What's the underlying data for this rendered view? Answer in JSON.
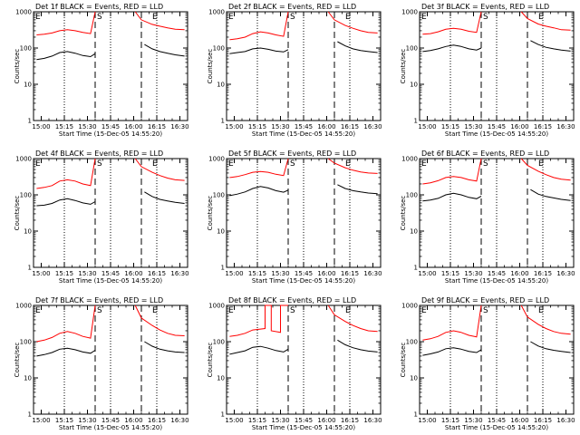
{
  "figure": {
    "y_axis_label": "Counts/sec",
    "x_axis_label": "Start Time (15-Dec-05 14:55:20)",
    "x_tick_labels": [
      "15:00",
      "15:15",
      "15:30",
      "15:45",
      "16:00",
      "16:15",
      "16:30"
    ],
    "y_tick_labels": [
      "1",
      "10",
      "100",
      "1000"
    ],
    "markers": {
      "start": "E",
      "middle": "S",
      "end": "E"
    },
    "colors": {
      "events": "#000000",
      "lld": "#ff0000",
      "axes": "#000000",
      "background": "#ffffff"
    }
  },
  "chart_data": [
    {
      "type": "line",
      "title": "Det 1f BLACK = Events, RED = LLD",
      "xlabel": "Start Time (15-Dec-05 14:55:20)",
      "ylabel": "Counts/sec",
      "x_unit": "time of day (minutes)",
      "xlim": [
        "14:55",
        "16:35"
      ],
      "ylim": [
        1,
        1000
      ],
      "y_scale": "log",
      "vertical_lines": {
        "dotted": [
          "15:15",
          "15:45",
          "16:15"
        ],
        "dashed": [
          "15:35",
          "16:05"
        ]
      },
      "series": [
        {
          "name": "BLACK = Events",
          "color": "#000000",
          "x": [
            "14:57",
            "15:02",
            "15:07",
            "15:12",
            "15:17",
            "15:22",
            "15:27",
            "15:32",
            "15:35",
            "16:05",
            "16:07",
            "16:12",
            "16:17",
            "16:22",
            "16:27",
            "16:33"
          ],
          "y": [
            48,
            52,
            60,
            75,
            80,
            72,
            62,
            58,
            70,
            null,
            125,
            95,
            80,
            72,
            65,
            60
          ]
        },
        {
          "name": "RED = LLD",
          "color": "#ff0000",
          "x": [
            "14:57",
            "15:02",
            "15:07",
            "15:12",
            "15:17",
            "15:22",
            "15:27",
            "15:32",
            "15:35",
            "15:37",
            "16:01",
            "16:05",
            "16:12",
            "16:17",
            "16:22",
            "16:27",
            "16:33"
          ],
          "y": [
            230,
            240,
            260,
            300,
            320,
            300,
            270,
            250,
            1000,
            null,
            1000,
            600,
            450,
            400,
            360,
            330,
            320
          ]
        }
      ]
    },
    {
      "type": "line",
      "title": "Det 2f BLACK = Events, RED = LLD",
      "xlabel": "Start Time (15-Dec-05 14:55:20)",
      "ylabel": "Counts/sec",
      "x_unit": "time of day (minutes)",
      "xlim": [
        "14:55",
        "16:35"
      ],
      "ylim": [
        1,
        1000
      ],
      "y_scale": "log",
      "vertical_lines": {
        "dotted": [
          "15:15",
          "15:45",
          "16:15"
        ],
        "dashed": [
          "15:35",
          "16:05"
        ]
      },
      "series": [
        {
          "name": "BLACK = Events",
          "color": "#000000",
          "x": [
            "14:57",
            "15:02",
            "15:07",
            "15:12",
            "15:17",
            "15:22",
            "15:27",
            "15:32",
            "15:35",
            "16:05",
            "16:07",
            "16:12",
            "16:17",
            "16:22",
            "16:27",
            "16:33"
          ],
          "y": [
            70,
            75,
            80,
            95,
            100,
            92,
            82,
            78,
            90,
            null,
            150,
            115,
            95,
            85,
            80,
            75
          ]
        },
        {
          "name": "RED = LLD",
          "color": "#ff0000",
          "x": [
            "14:57",
            "15:02",
            "15:07",
            "15:12",
            "15:17",
            "15:22",
            "15:27",
            "15:32",
            "15:35",
            "15:37",
            "16:01",
            "16:05",
            "16:12",
            "16:17",
            "16:22",
            "16:27",
            "16:33"
          ],
          "y": [
            170,
            180,
            200,
            250,
            280,
            260,
            230,
            210,
            1000,
            null,
            1000,
            600,
            420,
            350,
            300,
            270,
            260
          ]
        }
      ]
    },
    {
      "type": "line",
      "title": "Det 3f BLACK = Events, RED = LLD",
      "xlabel": "Start Time (15-Dec-05 14:55:20)",
      "ylabel": "Counts/sec",
      "x_unit": "time of day (minutes)",
      "xlim": [
        "14:55",
        "16:35"
      ],
      "ylim": [
        1,
        1000
      ],
      "y_scale": "log",
      "vertical_lines": {
        "dotted": [
          "15:15",
          "15:45",
          "16:15"
        ],
        "dashed": [
          "15:35",
          "16:05"
        ]
      },
      "series": [
        {
          "name": "BLACK = Events",
          "color": "#000000",
          "x": [
            "14:57",
            "15:02",
            "15:07",
            "15:12",
            "15:17",
            "15:22",
            "15:27",
            "15:32",
            "15:35",
            "16:05",
            "16:07",
            "16:12",
            "16:17",
            "16:22",
            "16:27",
            "16:33"
          ],
          "y": [
            80,
            85,
            95,
            110,
            120,
            110,
            95,
            88,
            100,
            null,
            160,
            125,
            105,
            95,
            88,
            82
          ]
        },
        {
          "name": "RED = LLD",
          "color": "#ff0000",
          "x": [
            "14:57",
            "15:02",
            "15:07",
            "15:12",
            "15:17",
            "15:22",
            "15:27",
            "15:32",
            "15:35",
            "15:37",
            "16:01",
            "16:05",
            "16:12",
            "16:17",
            "16:22",
            "16:27",
            "16:33"
          ],
          "y": [
            240,
            250,
            280,
            330,
            350,
            330,
            290,
            270,
            1000,
            null,
            1000,
            650,
            460,
            400,
            360,
            320,
            310
          ]
        }
      ]
    },
    {
      "type": "line",
      "title": "Det 4f BLACK = Events, RED = LLD",
      "xlabel": "Start Time (15-Dec-05 14:55:20)",
      "ylabel": "Counts/sec",
      "x_unit": "time of day (minutes)",
      "xlim": [
        "14:55",
        "16:35"
      ],
      "ylim": [
        1,
        1000
      ],
      "y_scale": "log",
      "vertical_lines": {
        "dotted": [
          "15:15",
          "15:45",
          "16:15"
        ],
        "dashed": [
          "15:35",
          "16:05"
        ]
      },
      "series": [
        {
          "name": "BLACK = Events",
          "color": "#000000",
          "x": [
            "14:57",
            "15:02",
            "15:07",
            "15:12",
            "15:17",
            "15:22",
            "15:27",
            "15:32",
            "15:35",
            "16:05",
            "16:07",
            "16:12",
            "16:17",
            "16:22",
            "16:27",
            "16:33"
          ],
          "y": [
            50,
            52,
            58,
            72,
            78,
            70,
            60,
            55,
            65,
            null,
            120,
            90,
            75,
            68,
            62,
            58
          ]
        },
        {
          "name": "RED = LLD",
          "color": "#ff0000",
          "x": [
            "14:57",
            "15:02",
            "15:07",
            "15:12",
            "15:17",
            "15:22",
            "15:27",
            "15:32",
            "15:35",
            "15:37",
            "16:01",
            "16:05",
            "16:12",
            "16:17",
            "16:22",
            "16:27",
            "16:33"
          ],
          "y": [
            150,
            160,
            180,
            240,
            260,
            240,
            200,
            180,
            1000,
            null,
            1000,
            600,
            420,
            340,
            290,
            260,
            250
          ]
        }
      ]
    },
    {
      "type": "line",
      "title": "Det 5f BLACK = Events, RED = LLD",
      "xlabel": "Start Time (15-Dec-05 14:55:20)",
      "ylabel": "Counts/sec",
      "x_unit": "time of day (minutes)",
      "xlim": [
        "14:55",
        "16:35"
      ],
      "ylim": [
        1,
        1000
      ],
      "y_scale": "log",
      "vertical_lines": {
        "dotted": [
          "15:15",
          "15:45",
          "16:15"
        ],
        "dashed": [
          "15:35",
          "16:05"
        ]
      },
      "series": [
        {
          "name": "BLACK = Events",
          "color": "#000000",
          "x": [
            "14:57",
            "15:02",
            "15:07",
            "15:12",
            "15:17",
            "15:22",
            "15:27",
            "15:32",
            "15:35",
            "16:05",
            "16:07",
            "16:12",
            "16:17",
            "16:22",
            "16:27",
            "16:33"
          ],
          "y": [
            95,
            105,
            120,
            150,
            170,
            155,
            130,
            118,
            135,
            null,
            190,
            150,
            130,
            120,
            112,
            108
          ]
        },
        {
          "name": "RED = LLD",
          "color": "#ff0000",
          "x": [
            "14:57",
            "15:02",
            "15:07",
            "15:12",
            "15:17",
            "15:22",
            "15:27",
            "15:32",
            "15:35",
            "15:37",
            "16:01",
            "16:05",
            "16:12",
            "16:17",
            "16:22",
            "16:27",
            "16:33"
          ],
          "y": [
            300,
            320,
            360,
            420,
            440,
            420,
            370,
            340,
            1000,
            null,
            1000,
            750,
            560,
            480,
            430,
            400,
            390
          ]
        }
      ]
    },
    {
      "type": "line",
      "title": "Det 6f BLACK = Events, RED = LLD",
      "xlabel": "Start Time (15-Dec-05 14:55:20)",
      "ylabel": "Counts/sec",
      "x_unit": "time of day (minutes)",
      "xlim": [
        "14:55",
        "16:35"
      ],
      "ylim": [
        1,
        1000
      ],
      "y_scale": "log",
      "vertical_lines": {
        "dotted": [
          "15:15",
          "15:45",
          "16:15"
        ],
        "dashed": [
          "15:35",
          "16:05"
        ]
      },
      "series": [
        {
          "name": "BLACK = Events",
          "color": "#000000",
          "x": [
            "14:57",
            "15:02",
            "15:07",
            "15:12",
            "15:17",
            "15:22",
            "15:27",
            "15:32",
            "15:35",
            "16:05",
            "16:07",
            "16:12",
            "16:17",
            "16:22",
            "16:27",
            "16:33"
          ],
          "y": [
            68,
            72,
            80,
            100,
            110,
            100,
            85,
            78,
            92,
            null,
            140,
            105,
            90,
            82,
            75,
            70
          ]
        },
        {
          "name": "RED = LLD",
          "color": "#ff0000",
          "x": [
            "14:57",
            "15:02",
            "15:07",
            "15:12",
            "15:17",
            "15:22",
            "15:27",
            "15:32",
            "15:35",
            "15:37",
            "16:01",
            "16:05",
            "16:12",
            "16:17",
            "16:22",
            "16:27",
            "16:33"
          ],
          "y": [
            200,
            215,
            245,
            300,
            320,
            300,
            260,
            240,
            1000,
            null,
            1000,
            650,
            450,
            360,
            300,
            270,
            255
          ]
        }
      ]
    },
    {
      "type": "line",
      "title": "Det 7f BLACK = Events, RED = LLD",
      "xlabel": "Start Time (15-Dec-05 14:55:20)",
      "ylabel": "Counts/sec",
      "x_unit": "time of day (minutes)",
      "xlim": [
        "14:55",
        "16:35"
      ],
      "ylim": [
        1,
        1000
      ],
      "y_scale": "log",
      "vertical_lines": {
        "dotted": [
          "15:15",
          "15:45",
          "16:15"
        ],
        "dashed": [
          "15:35",
          "16:05"
        ]
      },
      "series": [
        {
          "name": "BLACK = Events",
          "color": "#000000",
          "x": [
            "14:57",
            "15:02",
            "15:07",
            "15:12",
            "15:17",
            "15:22",
            "15:27",
            "15:32",
            "15:35",
            "16:05",
            "16:07",
            "16:12",
            "16:17",
            "16:22",
            "16:27",
            "16:33"
          ],
          "y": [
            40,
            44,
            50,
            62,
            66,
            60,
            52,
            48,
            58,
            null,
            100,
            75,
            62,
            56,
            52,
            50
          ]
        },
        {
          "name": "RED = LLD",
          "color": "#ff0000",
          "x": [
            "14:57",
            "15:02",
            "15:07",
            "15:12",
            "15:17",
            "15:22",
            "15:27",
            "15:32",
            "15:35",
            "15:37",
            "16:01",
            "16:05",
            "16:12",
            "16:17",
            "16:22",
            "16:27",
            "16:33"
          ],
          "y": [
            100,
            110,
            130,
            170,
            190,
            170,
            140,
            125,
            1000,
            null,
            1000,
            450,
            280,
            210,
            170,
            150,
            145
          ]
        }
      ]
    },
    {
      "type": "line",
      "title": "Det 8f BLACK = Events, RED = LLD",
      "xlabel": "Start Time (15-Dec-05 14:55:20)",
      "ylabel": "Counts/sec",
      "x_unit": "time of day (minutes)",
      "xlim": [
        "14:55",
        "16:35"
      ],
      "ylim": [
        1,
        1000
      ],
      "y_scale": "log",
      "vertical_lines": {
        "dotted": [
          "15:15",
          "15:45",
          "16:15"
        ],
        "dashed": [
          "15:35",
          "16:05"
        ]
      },
      "series": [
        {
          "name": "BLACK = Events",
          "color": "#000000",
          "x": [
            "14:57",
            "15:02",
            "15:07",
            "15:12",
            "15:17",
            "15:22",
            "15:27",
            "15:32",
            "15:35",
            "16:05",
            "16:07",
            "16:12",
            "16:17",
            "16:22",
            "16:27",
            "16:33"
          ],
          "y": [
            45,
            50,
            56,
            70,
            74,
            66,
            57,
            52,
            62,
            null,
            110,
            82,
            68,
            60,
            55,
            52
          ]
        },
        {
          "name": "RED = LLD",
          "color": "#ff0000",
          "x": [
            "14:57",
            "15:02",
            "15:07",
            "15:12",
            "15:20",
            "15:20",
            "15:24",
            "15:24",
            "15:30",
            "15:30",
            "15:35",
            "15:37",
            "16:01",
            "16:05",
            "16:12",
            "16:17",
            "16:22",
            "16:27",
            "16:33"
          ],
          "y": [
            140,
            150,
            170,
            210,
            230,
            1000,
            1000,
            200,
            180,
            1000,
            1000,
            null,
            1000,
            550,
            360,
            280,
            230,
            200,
            190
          ]
        }
      ]
    },
    {
      "type": "line",
      "title": "Det 9f BLACK = Events, RED = LLD",
      "xlabel": "Start Time (15-Dec-05 14:55:20)",
      "ylabel": "Counts/sec",
      "x_unit": "time of day (minutes)",
      "xlim": [
        "14:55",
        "16:35"
      ],
      "ylim": [
        1,
        1000
      ],
      "y_scale": "log",
      "vertical_lines": {
        "dotted": [
          "15:15",
          "15:45",
          "16:15"
        ],
        "dashed": [
          "15:35",
          "16:05"
        ]
      },
      "series": [
        {
          "name": "BLACK = Events",
          "color": "#000000",
          "x": [
            "14:57",
            "15:02",
            "15:07",
            "15:12",
            "15:17",
            "15:22",
            "15:27",
            "15:32",
            "15:35",
            "16:05",
            "16:07",
            "16:12",
            "16:17",
            "16:22",
            "16:27",
            "16:33"
          ],
          "y": [
            42,
            46,
            52,
            64,
            68,
            62,
            54,
            50,
            60,
            null,
            100,
            76,
            64,
            58,
            54,
            50
          ]
        },
        {
          "name": "RED = LLD",
          "color": "#ff0000",
          "x": [
            "14:57",
            "15:02",
            "15:07",
            "15:12",
            "15:17",
            "15:22",
            "15:27",
            "15:32",
            "15:35",
            "15:37",
            "16:01",
            "16:05",
            "16:12",
            "16:17",
            "16:22",
            "16:27",
            "16:33"
          ],
          "y": [
            110,
            120,
            140,
            180,
            200,
            180,
            150,
            135,
            1000,
            null,
            1000,
            480,
            300,
            230,
            190,
            170,
            160
          ]
        }
      ]
    }
  ]
}
